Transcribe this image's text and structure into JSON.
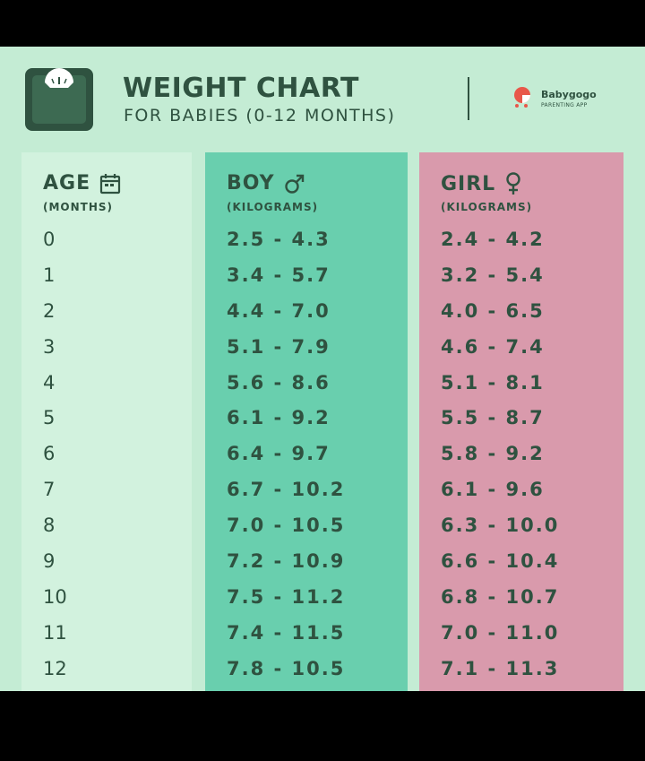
{
  "header": {
    "title": "WEIGHT CHART",
    "subtitle": "FOR BABIES (0-12 MONTHS)",
    "brand_name": "Babygogo",
    "brand_tagline": "PARENTING APP"
  },
  "columns": {
    "age": {
      "heading": "AGE",
      "unit": "(MONTHS)",
      "icon": "calendar-icon"
    },
    "boy": {
      "heading": "BOY",
      "unit": "(KILOGRAMS)",
      "icon": "male-symbol-icon"
    },
    "girl": {
      "heading": "GIRL",
      "unit": "(KILOGRAMS)",
      "icon": "female-symbol-icon"
    }
  },
  "rows": [
    {
      "age": "0",
      "boy": "2.5 - 4.3",
      "girl": "2.4 - 4.2"
    },
    {
      "age": "1",
      "boy": "3.4 - 5.7",
      "girl": "3.2 - 5.4"
    },
    {
      "age": "2",
      "boy": "4.4 - 7.0",
      "girl": "4.0 - 6.5"
    },
    {
      "age": "3",
      "boy": "5.1 - 7.9",
      "girl": "4.6 - 7.4"
    },
    {
      "age": "4",
      "boy": "5.6 - 8.6",
      "girl": "5.1 - 8.1"
    },
    {
      "age": "5",
      "boy": "6.1 - 9.2",
      "girl": "5.5 - 8.7"
    },
    {
      "age": "6",
      "boy": "6.4 - 9.7",
      "girl": "5.8 - 9.2"
    },
    {
      "age": "7",
      "boy": "6.7 - 10.2",
      "girl": "6.1 - 9.6"
    },
    {
      "age": "8",
      "boy": "7.0 - 10.5",
      "girl": "6.3 - 10.0"
    },
    {
      "age": "9",
      "boy": "7.2 - 10.9",
      "girl": "6.6 - 10.4"
    },
    {
      "age": "10",
      "boy": "7.5 - 11.2",
      "girl": "6.8 - 10.7"
    },
    {
      "age": "11",
      "boy": "7.4 - 11.5",
      "girl": "7.0 - 11.0"
    },
    {
      "age": "12",
      "boy": "7.8 - 10.5",
      "girl": "7.1 - 11.3"
    }
  ],
  "colors": {
    "background": "#c4ecd4",
    "age_column": "#d2f2de",
    "boy_column": "#69cfae",
    "girl_column": "#d99aac",
    "text": "#2f5240",
    "logo_accent": "#e8584a"
  }
}
